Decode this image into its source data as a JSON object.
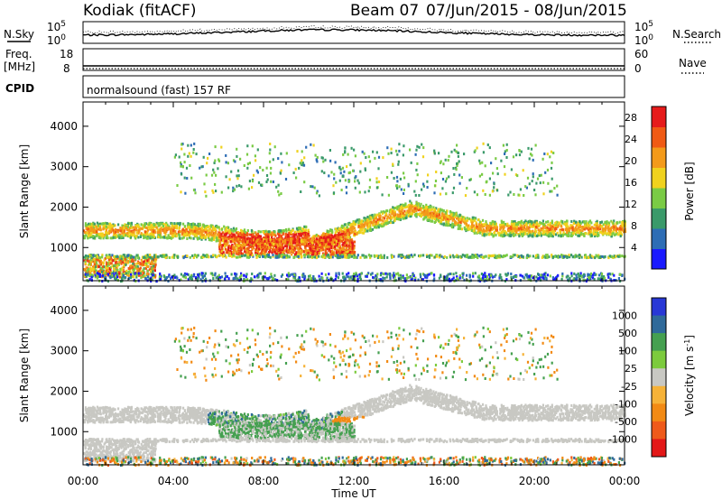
{
  "header": {
    "station": "Kodiak (fitACF)",
    "beam": "Beam 07",
    "date_range": "07/Jun/2015 - 08/Jun/2015"
  },
  "strips": {
    "nsky": {
      "label": "N.Sky",
      "ticks": [
        "10^5",
        "10^0"
      ]
    },
    "nsearch": {
      "label": "N.Search",
      "ticks": [
        "10^5",
        "10^0"
      ]
    },
    "freq": {
      "label_line1": "Freq.",
      "label_line2": "[MHz]",
      "ticks": [
        "18",
        "8"
      ]
    },
    "nave": {
      "label": "Nave",
      "ticks": [
        "60",
        "0"
      ]
    },
    "cpid": {
      "label": "CPID",
      "text": "normalsound (fast) 157 RF"
    }
  },
  "chart_data": [
    {
      "type": "heatmap",
      "name": "power",
      "ylabel": "Slant Range [km]",
      "xlabel": "",
      "ylim": [
        180,
        4600
      ],
      "yticks": [
        "1000",
        "2000",
        "3000",
        "4000"
      ],
      "ytick_values": [
        1000,
        2000,
        3000,
        4000
      ],
      "xlim_hours": [
        0,
        24
      ],
      "colorbar": {
        "label": "Power [dB]",
        "ticks": [
          "4",
          "8",
          "12",
          "16",
          "20",
          "24",
          "28"
        ],
        "tick_values": [
          4,
          8,
          12,
          16,
          20,
          24,
          28
        ],
        "range": [
          0,
          30
        ],
        "colors": [
          "#1a1aff",
          "#2d6db5",
          "#3a9a6a",
          "#7acb45",
          "#f0d21e",
          "#f39a1a",
          "#f05a14",
          "#e61b1b"
        ]
      },
      "features": [
        {
          "region": "main band",
          "range_km": [
            1300,
            1700
          ],
          "hours": [
            0,
            24
          ],
          "power_db": 16
        },
        {
          "region": "enhanced band",
          "range_km": [
            900,
            1300
          ],
          "hours": [
            6,
            12
          ],
          "power_db": 26
        },
        {
          "region": "rising arc",
          "range_km": [
            1100,
            2000
          ],
          "hours": [
            10,
            15
          ],
          "power_db": 14
        },
        {
          "region": "near range",
          "range_km": [
            300,
            800
          ],
          "hours": [
            0,
            3
          ],
          "power_db": 22
        }
      ]
    },
    {
      "type": "heatmap",
      "name": "velocity",
      "ylabel": "Slant Range [km]",
      "xlabel": "Time UT",
      "ylim": [
        180,
        4600
      ],
      "yticks": [
        "1000",
        "2000",
        "3000",
        "4000"
      ],
      "ytick_values": [
        1000,
        2000,
        3000,
        4000
      ],
      "xticks": [
        "00:00",
        "04:00",
        "08:00",
        "12:00",
        "16:00",
        "20:00",
        "00:00"
      ],
      "xtick_hours": [
        0,
        4,
        8,
        12,
        16,
        20,
        24
      ],
      "colorbar": {
        "label": "Velocity [m s^-1]",
        "ticks": [
          "1000",
          "500",
          "100",
          "25",
          "-25",
          "-100",
          "-500",
          "-1000"
        ],
        "colors": [
          "#2838d6",
          "#2f6a9a",
          "#45a050",
          "#7ccb3d",
          "#c8c8c3",
          "#f6b238",
          "#f28a14",
          "#ef5a1a",
          "#e31818"
        ]
      },
      "features": [
        {
          "region": "ground scatter band",
          "range_km": [
            1300,
            1700
          ],
          "hours": [
            0,
            24
          ],
          "velocity_ms": 0
        },
        {
          "region": "ionospheric patch",
          "range_km": [
            800,
            1600
          ],
          "hours": [
            5.5,
            12
          ],
          "velocity_ms": 200
        },
        {
          "region": "receding patch",
          "range_km": [
            1100,
            1400
          ],
          "hours": [
            11,
            12.5
          ],
          "velocity_ms": -300
        }
      ]
    }
  ]
}
